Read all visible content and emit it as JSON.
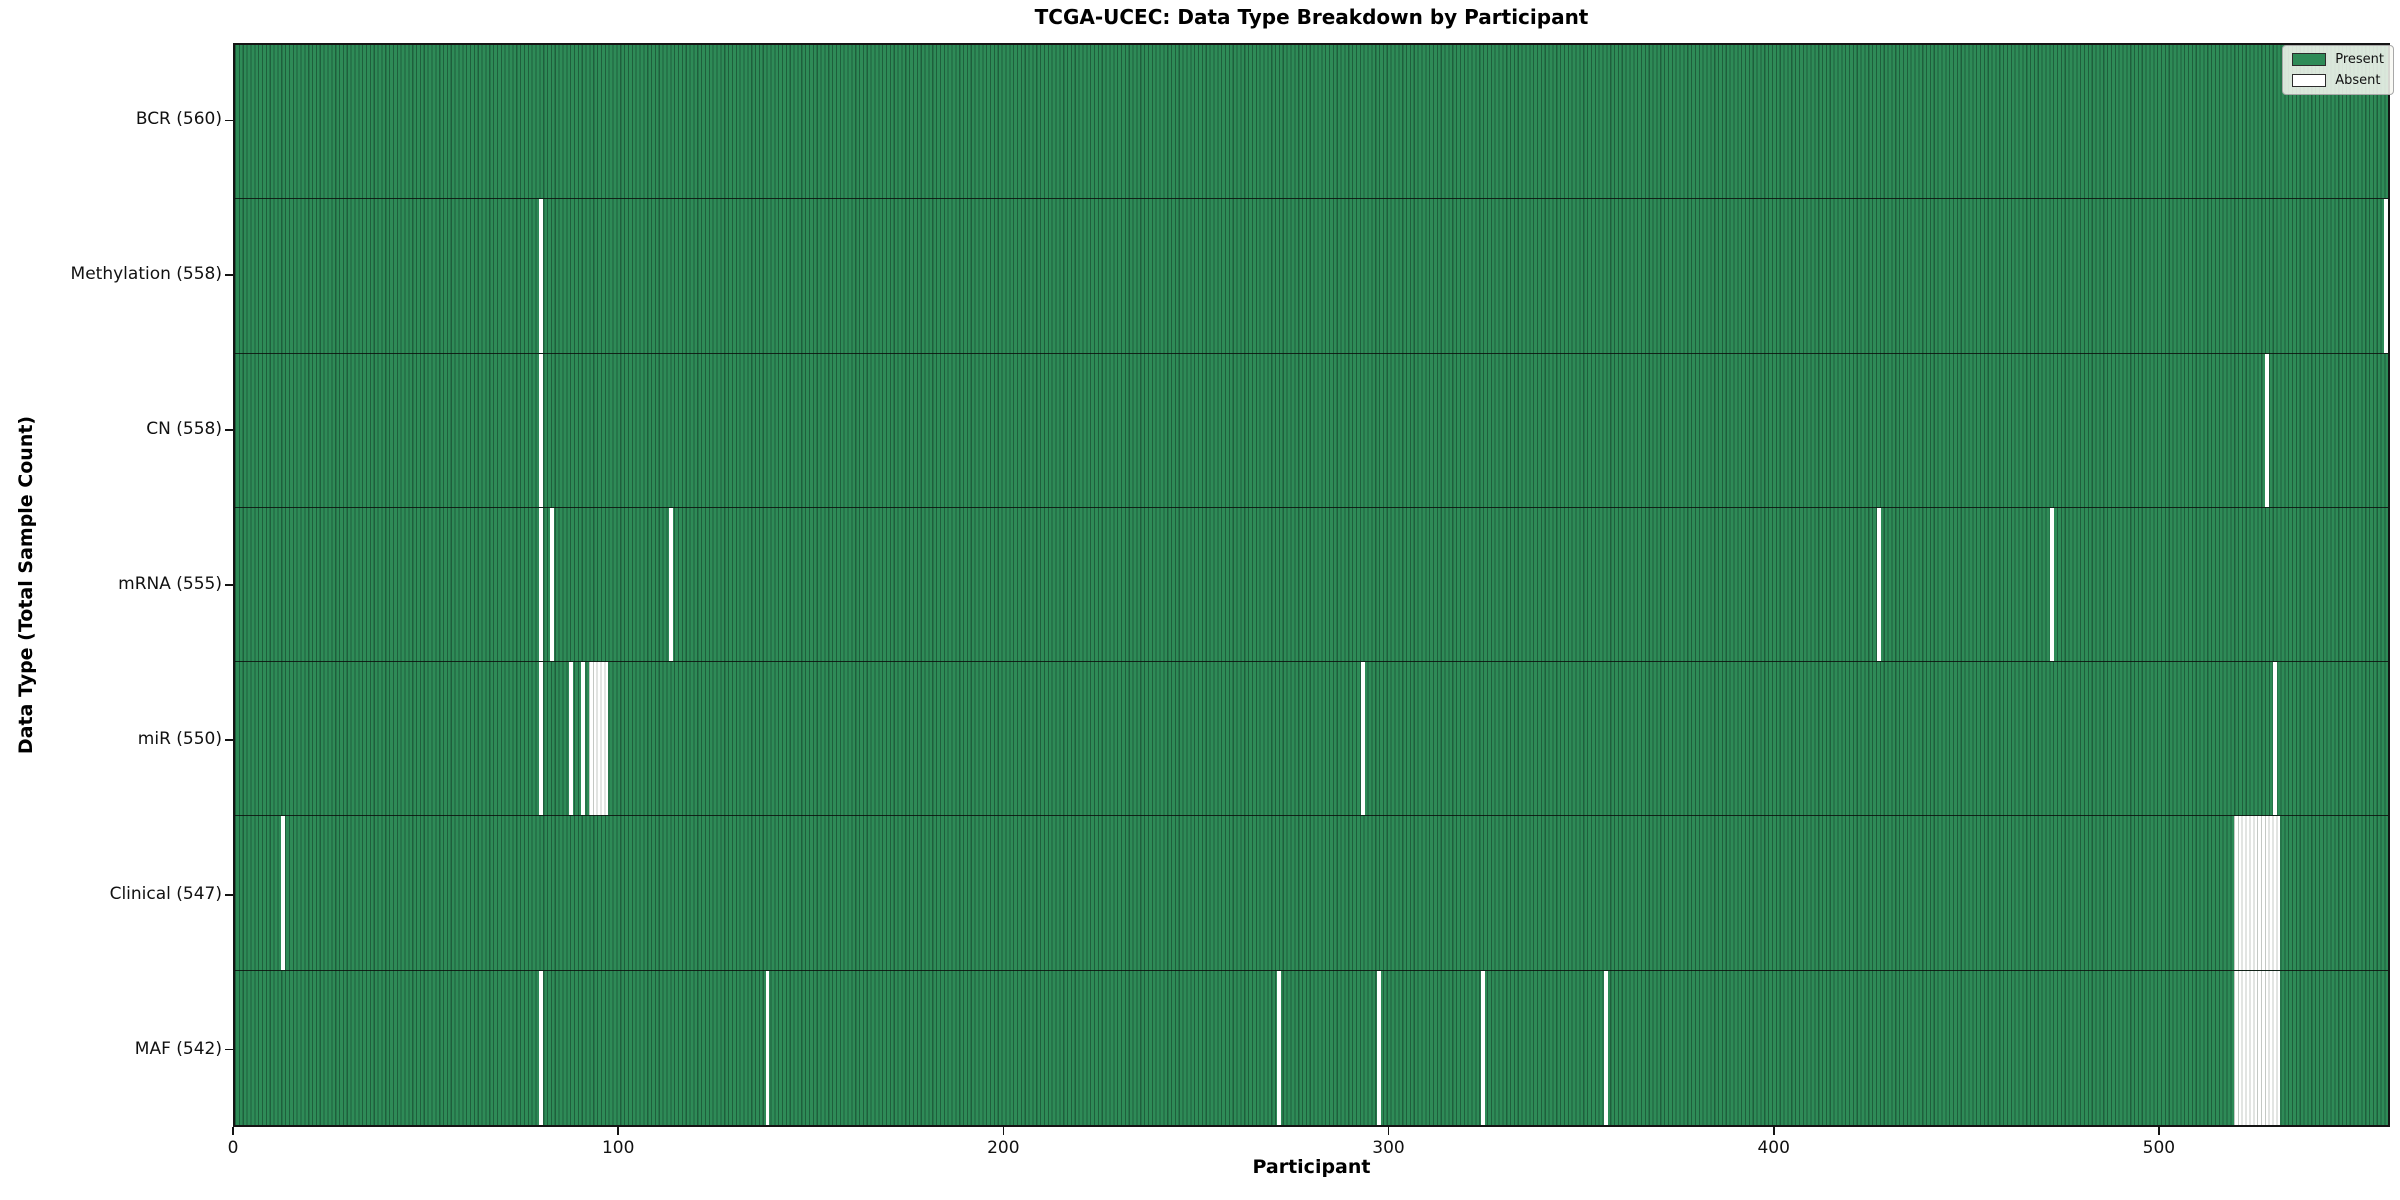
{
  "chart_data": {
    "type": "heatmap",
    "title": "TCGA-UCEC: Data Type Breakdown by Participant",
    "xlabel": "Participant",
    "ylabel": "Data Type (Total Sample Count)",
    "n_participants": 560,
    "xlim": [
      0,
      560
    ],
    "x_ticks": [
      0,
      100,
      200,
      300,
      400,
      500
    ],
    "grid": false,
    "legend_position": "upper right",
    "legend": [
      {
        "label": "Present",
        "swatch": "present"
      },
      {
        "label": "Absent",
        "swatch": "absent"
      }
    ],
    "colors": {
      "present": "#2e8b57",
      "present_edge": "#1e5f3c",
      "absent": "#ffffff",
      "absent_edge": "#c4c8c4",
      "spine": "#141414"
    },
    "rows": [
      {
        "label": "BCR (560)",
        "total": 560,
        "absent": []
      },
      {
        "label": "Methylation (558)",
        "total": 558,
        "absent": [
          79,
          559
        ]
      },
      {
        "label": "CN (558)",
        "total": 558,
        "absent": [
          79,
          528
        ]
      },
      {
        "label": "mRNA (555)",
        "total": 555,
        "absent": [
          79,
          82,
          113,
          427,
          472
        ]
      },
      {
        "label": "miR (550)",
        "total": 550,
        "absent": [
          79,
          87,
          90,
          92,
          93,
          94,
          95,
          96,
          293,
          530
        ]
      },
      {
        "label": "Clinical (547)",
        "total": 547,
        "absent": [
          12,
          520,
          521,
          522,
          523,
          524,
          525,
          526,
          527,
          528,
          529,
          530,
          531
        ]
      },
      {
        "label": "MAF (542)",
        "total": 542,
        "absent": [
          79,
          138,
          271,
          297,
          324,
          356,
          520,
          521,
          522,
          523,
          524,
          525,
          526,
          527,
          528,
          529,
          530,
          531
        ]
      }
    ]
  }
}
